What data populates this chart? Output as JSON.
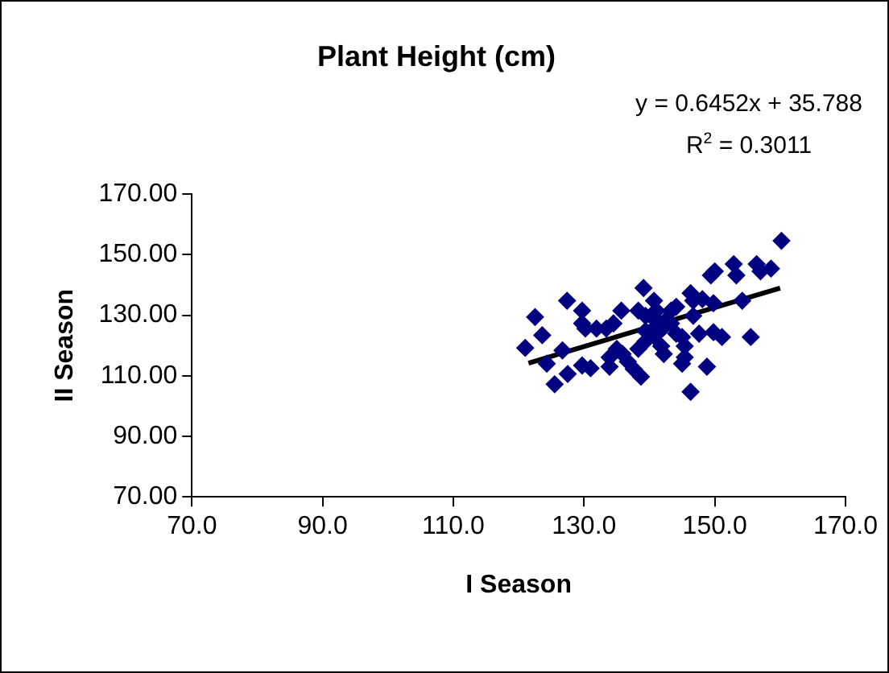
{
  "chart_data": {
    "type": "scatter",
    "title": "Plant Height (cm)",
    "xlabel": "I Season",
    "ylabel": "II Season",
    "annotations": [
      "y = 0.6452x + 35.788",
      "R$^{2}$ = 0.3011"
    ],
    "xlim": [
      70,
      170
    ],
    "xticks": [
      {
        "value": 70,
        "label": "70.0"
      },
      {
        "value": 90,
        "label": "90.0"
      },
      {
        "value": 110,
        "label": "110.0"
      },
      {
        "value": 130,
        "label": "130.0"
      },
      {
        "value": 150,
        "label": "150.0"
      },
      {
        "value": 170,
        "label": "170.0"
      }
    ],
    "ylim": [
      70,
      170
    ],
    "yticks": [
      {
        "value": 70,
        "label": "70.00"
      },
      {
        "value": 90,
        "label": "90.00"
      },
      {
        "value": 110,
        "label": "110.00"
      },
      {
        "value": 130,
        "label": "130.00"
      },
      {
        "value": 150,
        "label": "150.00"
      },
      {
        "value": 170,
        "label": "170.00"
      }
    ],
    "grid": false,
    "legend": false,
    "marker": "diamond",
    "series": [
      {
        "color": "#000080",
        "x": [
          121.0,
          122.5,
          123.6,
          124.3,
          125.5,
          126.7,
          127.4,
          127.5,
          129.7,
          129.7,
          130.2,
          129.7,
          131.0,
          131.9,
          133.4,
          134.5,
          133.9,
          133.9,
          135.7,
          135.0,
          135.9,
          136.7,
          137.6,
          138.7,
          138.3,
          139.1,
          139.4,
          140.2,
          140.7,
          141.1,
          140.7,
          141.8,
          142.2,
          141.5,
          142.4,
          143.3,
          144.1,
          144.1,
          145.0,
          145.4,
          145.0,
          145.4,
          146.3,
          146.3,
          146.7,
          146.7,
          147.6,
          148.1,
          148.8,
          149.4,
          150.0,
          149.8,
          149.8,
          151.1,
          152.9,
          153.3,
          154.2,
          155.5,
          156.4,
          157.0,
          158.6,
          160.2,
          139.4,
          138.3,
          140.7,
          139.4,
          142.0,
          143.3
        ],
        "values": [
          119.2,
          129.4,
          123.4,
          114.0,
          107.2,
          118.4,
          134.8,
          110.6,
          131.5,
          127.3,
          125.6,
          113.4,
          112.5,
          125.6,
          125.6,
          127.3,
          113.0,
          116.1,
          131.5,
          118.9,
          117.2,
          114.7,
          112.2,
          109.7,
          118.9,
          139.0,
          124.8,
          129.8,
          134.8,
          131.5,
          123.1,
          119.8,
          117.2,
          127.3,
          128.1,
          131.5,
          132.8,
          123.9,
          122.8,
          119.8,
          114.0,
          116.1,
          104.7,
          137.3,
          134.8,
          129.8,
          123.9,
          135.3,
          113.0,
          143.2,
          144.5,
          134.0,
          124.4,
          122.8,
          146.9,
          143.2,
          134.8,
          122.8,
          146.9,
          144.5,
          145.4,
          154.6,
          121.4,
          131.5,
          125.6,
          129.8,
          125.6,
          127.3
        ]
      },
      {
        "type": "line",
        "color": "#000000",
        "marker": "none",
        "line_style": "solid",
        "x": [
          121.5,
          160.0
        ],
        "values": [
          114.2,
          139.0
        ]
      }
    ]
  }
}
